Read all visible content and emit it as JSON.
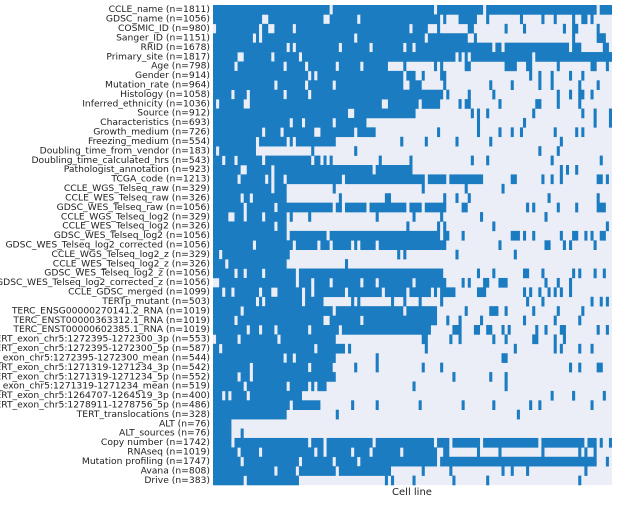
{
  "chart_data": {
    "type": "heatmap",
    "xlabel": "Cell line",
    "color": "#1b7cc1",
    "background": "#eceef7",
    "rows": [
      "CCLE_name (n=1811)",
      "GDSC_name (n=1056)",
      "COSMIC_ID (n=980)",
      "Sanger_ID (n=1151)",
      "RRID (n=1678)",
      "Primary_site (n=1817)",
      "Age (n=798)",
      "Gender (n=914)",
      "Mutation_rate (n=964)",
      "Histology (n=1058)",
      "Inferred_ethnicity (n=1036)",
      "Source (n=912)",
      "Characteristics (n=693)",
      "Growth_medium (n=726)",
      "Freezing_medium (n=554)",
      "Doubling_time_from_vendor (n=183)",
      "Doubling_time_calculated_hrs (n=543)",
      "Pathologist_annotation (n=923)",
      "TCGA_code (n=1213)",
      "CCLE_WGS_Telseq_raw (n=329)",
      "CCLE_WES_Telseq_raw (n=326)",
      "GDSC_WES_Telseq_raw (n=1056)",
      "CCLE_WGS_Telseq_log2 (n=329)",
      "CCLE_WES_Telseq_log2 (n=326)",
      "GDSC_WES_Telseq_log2 (n=1056)",
      "GDSC_WES_Telseq_log2_corrected (n=1056)",
      "CCLE_WGS_Telseq_log2_z (n=329)",
      "CCLE_WES_Telseq_log2_z (n=326)",
      "GDSC_WES_Telseq_log2_z (n=1056)",
      "GDSC_WES_Telseq_log2_corrected_z (n=1056)",
      "CCLE_GDSC_merged (n=1099)",
      "TERTp_mutant (n=503)",
      "TERC_ENSG00000270141.2_RNA (n=1019)",
      "TERC_ENST00000363312.1_RNA (n=1019)",
      "TERC_ENST00000602385.1_RNA (n=1019)",
      "TERT_exon_chr5:1272395-1272300_3p (n=553)",
      "TERT_exon_chr5:1272395-1272300_5p (n=587)",
      "TERT_exon_chr5:1272395-1272300_mean (n=544)",
      "TERT_exon_chr5:1271319-1271234_3p (n=542)",
      "TERT_exon_chr5:1271319-1271234_5p (n=552)",
      "TERT_exon_chr5:1271319-1271234_mean (n=519)",
      "TERT_exon_chr5:1264707-1264519_3p (n=400)",
      "TERT_exon_chr5:1278911-1278756_5p (n=486)",
      "TERT_translocations (n=328)",
      "ALT (n=76)",
      "ALT_sources (n=76)",
      "Copy number (n=1742)",
      "RNAseq (n=1019)",
      "Mutation profiling (n=1747)",
      "Avana (n=808)",
      "Drive (n=383)"
    ]
  }
}
